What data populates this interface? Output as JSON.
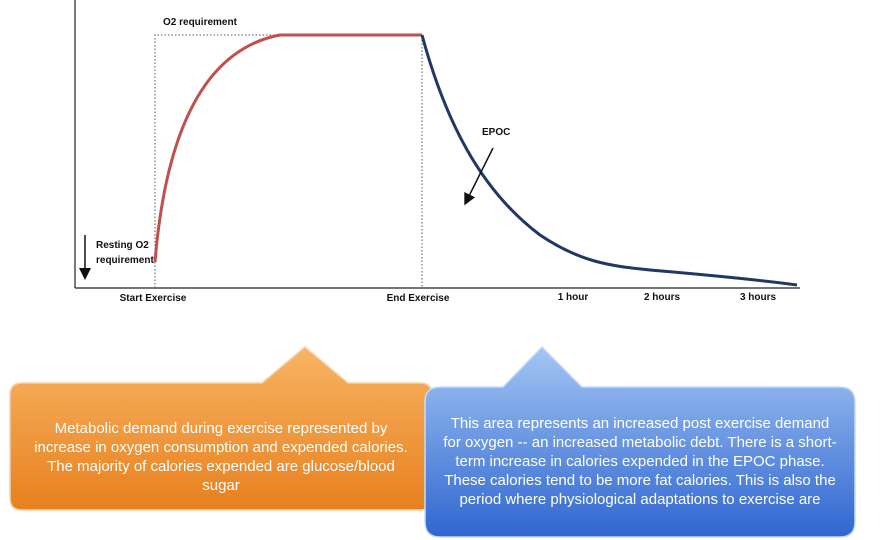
{
  "labels": {
    "o2_requirement": "O2 requirement",
    "epoc": "EPOC",
    "resting": [
      "Resting O2",
      "requirement"
    ],
    "x_axis": [
      "Start Exercise",
      "End Exercise",
      "1 hour",
      "2 hours",
      "3 hours"
    ]
  },
  "callouts": {
    "exercise": "Metabolic demand during exercise represented by increase in oxygen consumption and expended calories. The majority of calories expended are glucose/blood sugar",
    "epoc": "This area represents an increased post exercise demand for oxygen -- an increased metabolic debt. There is a short-term increase in calories expended in the EPOC phase. These calories tend to be more fat calories. This is also the period where physiological adaptations to exercise are"
  }
}
